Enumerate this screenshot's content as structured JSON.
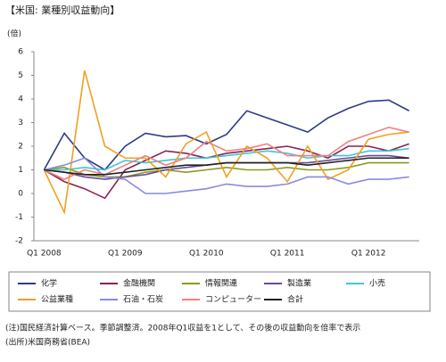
{
  "chart_data": {
    "type": "line",
    "title": "【米国: 業種別収益動向】",
    "y_label": "(倍)",
    "categories": [
      "Q1 2008",
      null,
      null,
      null,
      "Q1 2009",
      null,
      null,
      null,
      "Q1 2010",
      null,
      null,
      null,
      "Q1 2011",
      null,
      null,
      null,
      "Q1 2012",
      null,
      null
    ],
    "ylim": [
      -2,
      6
    ],
    "yticks": [
      -2,
      -1,
      0,
      1,
      2,
      3,
      4,
      5,
      6
    ],
    "grid": false,
    "series": [
      {
        "name": "化学",
        "color": "#2e3a87",
        "values": [
          1,
          2.55,
          1.5,
          1.0,
          2.0,
          2.55,
          2.4,
          2.45,
          2.1,
          2.5,
          3.5,
          3.2,
          2.9,
          2.6,
          3.2,
          3.6,
          3.9,
          3.95,
          3.5
        ]
      },
      {
        "name": "金融機関",
        "color": "#8b2252",
        "values": [
          1,
          0.5,
          0.2,
          -0.2,
          1.0,
          1.4,
          1.8,
          1.7,
          1.5,
          1.7,
          1.8,
          1.9,
          2.0,
          1.8,
          1.5,
          2.0,
          2.0,
          1.8,
          2.1
        ]
      },
      {
        "name": "情報関連",
        "color": "#8a9a1b",
        "values": [
          1,
          1.1,
          0.8,
          0.7,
          0.7,
          0.9,
          1.0,
          0.9,
          1.0,
          1.1,
          1.0,
          1.0,
          1.1,
          1.0,
          1.0,
          1.1,
          1.3,
          1.3,
          1.3
        ]
      },
      {
        "name": "製造業",
        "color": "#6a4a9a",
        "values": [
          1,
          0.9,
          0.7,
          0.6,
          0.7,
          0.8,
          1.0,
          1.1,
          1.2,
          1.3,
          1.3,
          1.3,
          1.3,
          1.3,
          1.4,
          1.5,
          1.6,
          1.6,
          1.5
        ]
      },
      {
        "name": "小売",
        "color": "#3cc8d8",
        "values": [
          1,
          1.0,
          1.1,
          1.0,
          1.4,
          1.3,
          1.4,
          1.5,
          1.5,
          1.6,
          1.7,
          1.8,
          1.7,
          1.5,
          1.6,
          1.6,
          1.8,
          1.8,
          1.9
        ]
      },
      {
        "name": "公益業種",
        "color": "#f0a020",
        "values": [
          1,
          -0.8,
          5.2,
          2.0,
          1.5,
          1.5,
          0.7,
          2.1,
          2.6,
          0.7,
          2.0,
          1.5,
          0.5,
          2.0,
          0.6,
          1.0,
          2.3,
          2.5,
          2.6
        ]
      },
      {
        "name": "石油・石炭",
        "color": "#8a8ae0",
        "values": [
          1,
          1.2,
          1.5,
          0.7,
          0.6,
          0.0,
          0.0,
          0.1,
          0.2,
          0.4,
          0.3,
          0.3,
          0.4,
          0.7,
          0.7,
          0.4,
          0.6,
          0.6,
          0.7
        ]
      },
      {
        "name": "コンピューター",
        "color": "#f08080",
        "values": [
          1,
          0.6,
          1.0,
          0.8,
          1.2,
          1.6,
          1.2,
          1.5,
          2.2,
          1.8,
          1.9,
          2.1,
          1.6,
          1.6,
          1.6,
          2.2,
          2.5,
          2.8,
          2.6
        ]
      },
      {
        "name": "合計",
        "color": "#222222",
        "values": [
          1,
          0.9,
          0.8,
          0.8,
          0.9,
          1.0,
          1.1,
          1.2,
          1.2,
          1.3,
          1.3,
          1.3,
          1.3,
          1.2,
          1.3,
          1.4,
          1.5,
          1.5,
          1.5
        ]
      }
    ],
    "notes": [
      "(注)国民経済計算ベース。季節調整済。2008年Q1収益を1として、その後の収益動向を倍率で表示",
      "(出所)米国商務省(BEA)"
    ]
  }
}
